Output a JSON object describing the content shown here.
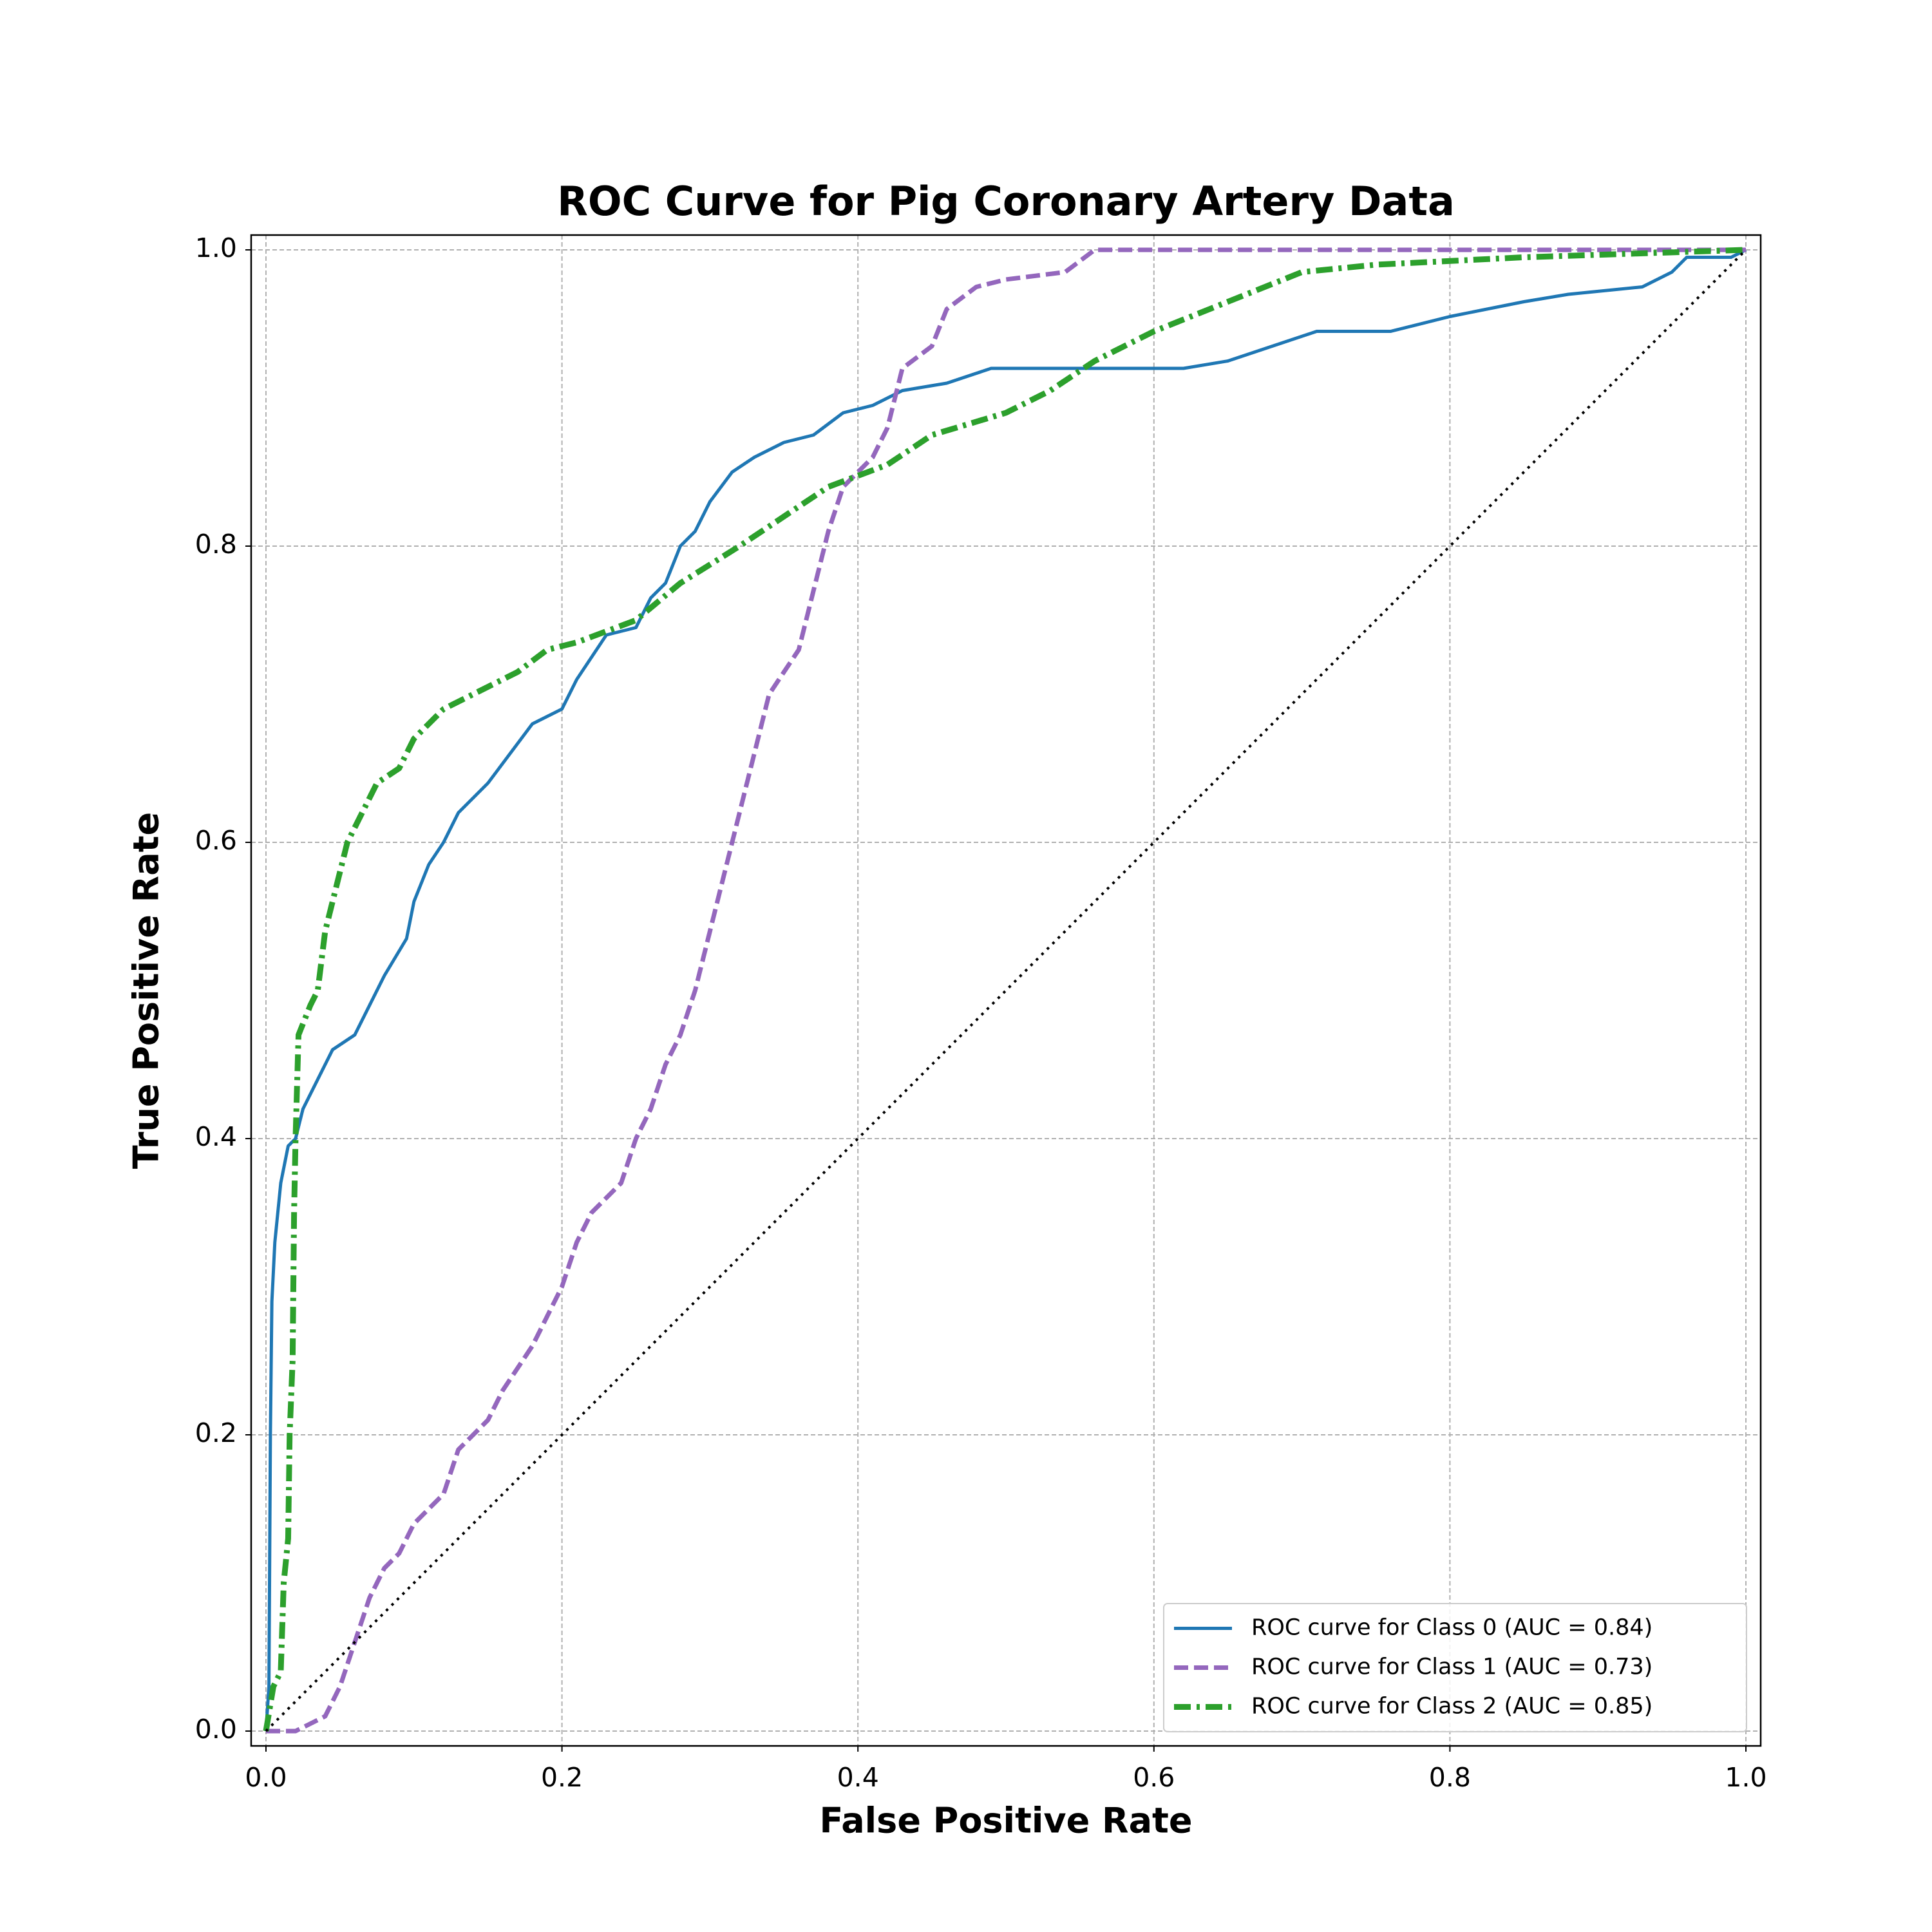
{
  "chart_data": {
    "type": "line",
    "title": "ROC Curve for Pig Coronary Artery Data",
    "x_label": "False Positive Rate",
    "y_label": "True Positive Rate",
    "xlim": [
      -0.01,
      1.01
    ],
    "ylim": [
      -0.01,
      1.01
    ],
    "xticks": [
      {
        "value": 0,
        "label": "0.0"
      },
      0.2,
      0.4,
      0.6,
      0.8,
      {
        "value": 1,
        "label": "1.0"
      }
    ],
    "yticks": [
      {
        "value": 0,
        "label": "0.0"
      },
      0.2,
      0.4,
      0.6,
      0.8,
      {
        "value": 1,
        "label": "1.0"
      }
    ],
    "grid": true,
    "legend_position": "lower right",
    "series": [
      {
        "name": "ROC curve for Class 0 (AUC = 0.84)",
        "color": "#1f77b4",
        "style": "solid",
        "x": [
          0,
          0.002,
          0.003,
          0.004,
          0.006,
          0.01,
          0.015,
          0.02,
          0.025,
          0.035,
          0.045,
          0.06,
          0.07,
          0.08,
          0.095,
          0.1,
          0.11,
          0.12,
          0.13,
          0.15,
          0.165,
          0.18,
          0.2,
          0.21,
          0.23,
          0.25,
          0.26,
          0.27,
          0.28,
          0.29,
          0.3,
          0.315,
          0.33,
          0.35,
          0.37,
          0.39,
          0.41,
          0.43,
          0.46,
          0.49,
          0.55,
          0.62,
          0.65,
          0.68,
          0.71,
          0.76,
          0.8,
          0.85,
          0.88,
          0.93,
          0.95,
          0.96,
          0.99,
          1
        ],
        "values": [
          0,
          0.03,
          0.2,
          0.29,
          0.33,
          0.37,
          0.395,
          0.4,
          0.42,
          0.44,
          0.46,
          0.47,
          0.49,
          0.51,
          0.535,
          0.56,
          0.585,
          0.6,
          0.62,
          0.64,
          0.66,
          0.68,
          0.69,
          0.71,
          0.74,
          0.745,
          0.765,
          0.775,
          0.8,
          0.81,
          0.83,
          0.85,
          0.86,
          0.87,
          0.875,
          0.89,
          0.895,
          0.905,
          0.91,
          0.92,
          0.92,
          0.92,
          0.925,
          0.935,
          0.945,
          0.945,
          0.955,
          0.965,
          0.97,
          0.975,
          0.985,
          0.995,
          0.995,
          1
        ]
      },
      {
        "name": "ROC curve for Class 1 (AUC = 0.73)",
        "color": "#9467bd",
        "style": "dashed",
        "x": [
          0,
          0.02,
          0.04,
          0.05,
          0.06,
          0.07,
          0.08,
          0.09,
          0.1,
          0.11,
          0.12,
          0.13,
          0.15,
          0.16,
          0.18,
          0.2,
          0.21,
          0.22,
          0.24,
          0.25,
          0.26,
          0.27,
          0.28,
          0.29,
          0.3,
          0.31,
          0.32,
          0.33,
          0.34,
          0.36,
          0.37,
          0.38,
          0.39,
          0.41,
          0.42,
          0.43,
          0.45,
          0.46,
          0.48,
          0.5,
          0.54,
          0.56,
          1
        ],
        "values": [
          0,
          0,
          0.01,
          0.03,
          0.06,
          0.09,
          0.11,
          0.12,
          0.14,
          0.15,
          0.16,
          0.19,
          0.21,
          0.23,
          0.26,
          0.3,
          0.33,
          0.35,
          0.37,
          0.4,
          0.42,
          0.45,
          0.47,
          0.5,
          0.54,
          0.58,
          0.62,
          0.66,
          0.7,
          0.73,
          0.77,
          0.81,
          0.84,
          0.86,
          0.88,
          0.92,
          0.935,
          0.96,
          0.975,
          0.98,
          0.985,
          1,
          1
        ]
      },
      {
        "name": "ROC curve for Class 2 (AUC = 0.85)",
        "color": "#2ca02c",
        "style": "dashdot",
        "x": [
          0,
          0.005,
          0.01,
          0.012,
          0.015,
          0.016,
          0.018,
          0.019,
          0.02,
          0.022,
          0.03,
          0.035,
          0.04,
          0.045,
          0.05,
          0.055,
          0.065,
          0.075,
          0.09,
          0.1,
          0.12,
          0.14,
          0.17,
          0.19,
          0.21,
          0.25,
          0.28,
          0.32,
          0.35,
          0.38,
          0.42,
          0.45,
          0.5,
          0.53,
          0.56,
          0.6,
          0.65,
          0.7,
          0.75,
          0.85,
          1
        ],
        "values": [
          0,
          0.03,
          0.04,
          0.1,
          0.13,
          0.2,
          0.25,
          0.35,
          0.4,
          0.47,
          0.49,
          0.5,
          0.54,
          0.56,
          0.58,
          0.6,
          0.62,
          0.64,
          0.65,
          0.67,
          0.69,
          0.7,
          0.715,
          0.73,
          0.735,
          0.75,
          0.775,
          0.8,
          0.82,
          0.84,
          0.855,
          0.875,
          0.89,
          0.905,
          0.925,
          0.945,
          0.965,
          0.985,
          0.99,
          0.995,
          1
        ]
      }
    ],
    "reference_line": {
      "color": "#000000",
      "style": "dotted",
      "x": [
        0,
        1
      ],
      "values": [
        0,
        1
      ]
    }
  }
}
